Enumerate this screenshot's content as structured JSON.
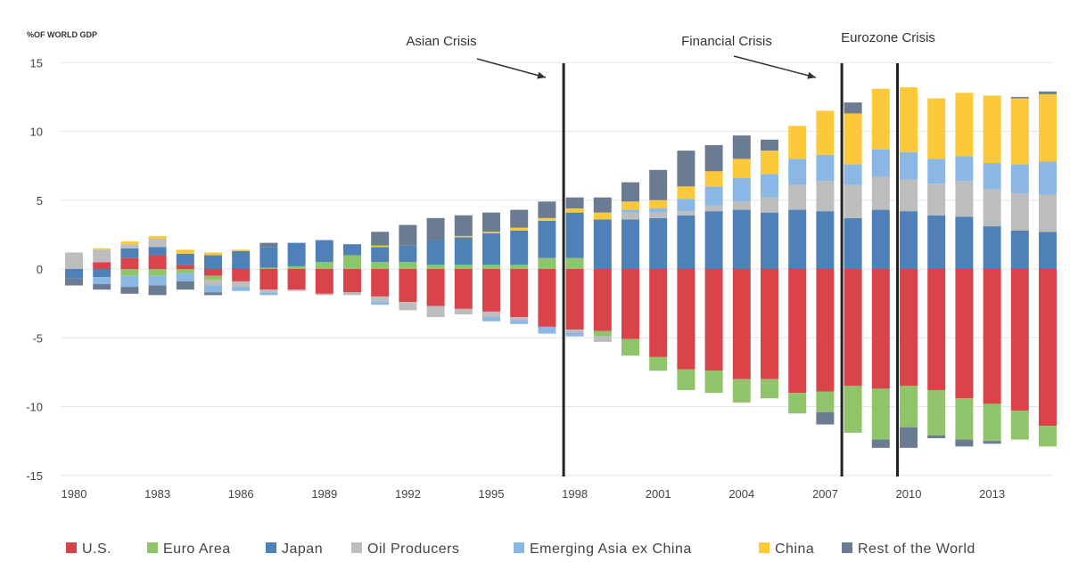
{
  "chart_data": {
    "type": "bar",
    "stacked": true,
    "title": "",
    "ylabel": "%OF WORLD GDP",
    "xlabel": "",
    "ylim": [
      -15,
      15
    ],
    "yticks": [
      15,
      10,
      5,
      0,
      -5,
      -10,
      -15
    ],
    "xtick_labels": [
      "1980",
      "1983",
      "1986",
      "1989",
      "1992",
      "1995",
      "1998",
      "2001",
      "2004",
      "2007",
      "2010",
      "2013"
    ],
    "categories": [
      "1980",
      "1981",
      "1982",
      "1983",
      "1984",
      "1985",
      "1986",
      "1987",
      "1988",
      "1989",
      "1990",
      "1991",
      "1992",
      "1993",
      "1994",
      "1995",
      "1996",
      "1997",
      "1998",
      "1999",
      "2000",
      "2001",
      "2002",
      "2003",
      "2004",
      "2005",
      "2006",
      "2007",
      "2008",
      "2009",
      "2010",
      "2011",
      "2012",
      "2013",
      "2014",
      "2015"
    ],
    "series": [
      {
        "name": "U.S.",
        "color": "#d9434a",
        "values": [
          0,
          0.5,
          0.8,
          1.0,
          0.3,
          -0.5,
          -0.9,
          -1.5,
          -1.5,
          -1.8,
          -1.7,
          -2.0,
          -2.4,
          -2.7,
          -2.9,
          -3.1,
          -3.5,
          -4.2,
          -4.4,
          -4.5,
          -5.1,
          -6.4,
          -7.3,
          -7.4,
          -8.0,
          -8.0,
          -9.0,
          -8.9,
          -8.5,
          -8.7,
          -8.5,
          -8.8,
          -9.4,
          -9.8,
          -10.3,
          -11.4
        ]
      },
      {
        "name": "Euro Area",
        "color": "#8fc46a",
        "values": [
          0,
          0,
          -0.5,
          -0.5,
          -0.3,
          -0.3,
          0,
          0.1,
          0.2,
          0.5,
          1.0,
          0.5,
          0.5,
          0.3,
          0.3,
          0.3,
          0.3,
          0.8,
          0.8,
          -0.4,
          -1.2,
          -1.0,
          -1.5,
          -1.6,
          -1.7,
          -1.4,
          -1.5,
          -1.5,
          -3.4,
          -3.7,
          -3.0,
          -3.3,
          -3.0,
          -2.7,
          -2.1,
          -1.5
        ]
      },
      {
        "name": "Japan",
        "color": "#4f81b8",
        "values": [
          -0.7,
          -0.6,
          0.7,
          0.6,
          0.8,
          1.0,
          1.3,
          1.5,
          1.7,
          1.6,
          0.8,
          1.1,
          1.2,
          1.8,
          2.0,
          2.3,
          2.5,
          2.7,
          3.3,
          3.6,
          3.6,
          3.7,
          3.9,
          4.2,
          4.3,
          4.1,
          4.3,
          4.2,
          3.7,
          4.3,
          4.2,
          3.9,
          3.8,
          3.1,
          2.8,
          2.7
        ]
      },
      {
        "name": "Oil Producers",
        "color": "#bdbdbd",
        "values": [
          1.2,
          0.9,
          0.3,
          0.6,
          0,
          -0.4,
          -0.4,
          -0.2,
          -0.1,
          -0.1,
          -0.2,
          -0.4,
          -0.6,
          -0.8,
          -0.4,
          -0.4,
          -0.2,
          0,
          -0.2,
          -0.4,
          0.5,
          0.4,
          0.3,
          0.4,
          0.6,
          1.1,
          1.8,
          2.2,
          2.4,
          2.4,
          2.3,
          2.3,
          2.6,
          2.7,
          2.7,
          2.7
        ]
      },
      {
        "name": "Emerging Asia ex China",
        "color": "#8bb7e4",
        "values": [
          0,
          -0.5,
          -0.8,
          -0.7,
          -0.6,
          -0.5,
          -0.3,
          -0.2,
          0,
          0,
          0,
          -0.2,
          0,
          0,
          0,
          -0.3,
          -0.3,
          -0.5,
          -0.3,
          0,
          0.2,
          0.3,
          0.9,
          1.4,
          1.7,
          1.7,
          1.9,
          1.9,
          1.5,
          2.0,
          2.0,
          1.8,
          1.8,
          1.9,
          2.1,
          2.4
        ]
      },
      {
        "name": "China",
        "color": "#fcc93b",
        "values": [
          0,
          0.1,
          0.2,
          0.2,
          0.3,
          0.2,
          0.1,
          0,
          0,
          0,
          0,
          0.1,
          0,
          0,
          0.1,
          0.1,
          0.2,
          0.2,
          0.3,
          0.5,
          0.6,
          0.6,
          0.9,
          1.1,
          1.4,
          1.7,
          2.4,
          3.2,
          3.7,
          4.4,
          4.7,
          4.4,
          4.6,
          4.9,
          4.8,
          4.9
        ]
      },
      {
        "name": "Rest of the World",
        "color": "#6b7c92",
        "values": [
          -0.5,
          -0.4,
          -0.5,
          -0.7,
          -0.6,
          -0.2,
          0,
          0.3,
          0,
          0,
          0,
          1.0,
          1.5,
          1.6,
          1.5,
          1.4,
          1.3,
          1.2,
          0.8,
          1.1,
          1.4,
          2.2,
          2.6,
          1.9,
          1.7,
          0.8,
          0,
          -0.9,
          0.8,
          -0.6,
          -1.5,
          -0.2,
          -0.5,
          -0.2,
          0.1,
          0.2
        ]
      }
    ],
    "events": [
      {
        "label": "Asian Crisis",
        "year": 1997.6
      },
      {
        "label": "Financial Crisis",
        "year": 2007.6
      },
      {
        "label": "Eurozone Crisis",
        "year": 2009.6
      }
    ],
    "legend_position": "bottom",
    "grid": true
  }
}
